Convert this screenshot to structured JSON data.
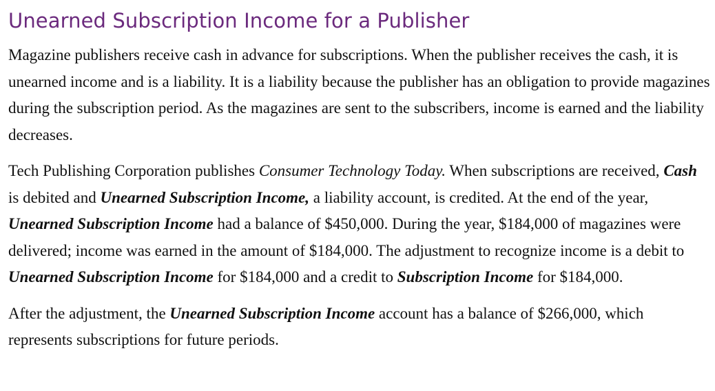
{
  "heading": "Unearned Subscription Income for a Publisher",
  "p1": "Magazine publishers receive cash in advance for subscriptions. When the publisher receives the cash, it is unearned income and is a liability. It is a liability because the publisher has an obligation to provide magazines during the subscription period. As the magazines are sent to the subscribers, income is earned and the liability decreases.",
  "p2": {
    "t1": "Tech Publishing Corporation publishes ",
    "pub": "Consumer Technology Today.",
    "t2": " When subscriptions are received, ",
    "cash": "Cash",
    "t3": " is debited and ",
    "usi1": "Unearned Subscription Income,",
    "t4": " a liability account, is credited. At the end of the year, ",
    "usi2": "Unearned Subscription Income",
    "t5": " had a balance of $450,000. During the year, $184,000 of magazines were delivered; income was earned in the amount of $184,000. The adjustment to recognize income is a debit to ",
    "usi3": "Unearned Subscription Income",
    "t6": " for $184,000 and a credit to ",
    "si": "Subscription Income",
    "t7": " for $184,000."
  },
  "p3": {
    "t1": "After the adjustment, the ",
    "usi": "Unearned Subscription Income",
    "t2": " account has a balance of $266,000, which represents subscriptions for future periods."
  }
}
